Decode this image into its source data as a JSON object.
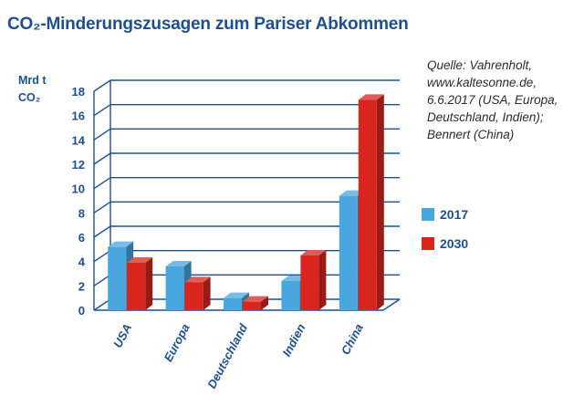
{
  "title": "CO₂-Minderungszusagen zum Pariser Abkommen",
  "source_note": "Quelle: Vahrenholt, www.kaltesonne.de, 6.6.2017 (USA, Europa, Deutschland, Indien); Bennert (China)",
  "colors": {
    "series_2017": "#4aa6de",
    "series_2030": "#d8261f",
    "text": "#1d4f91",
    "grid": "#1d4f91"
  },
  "chart_data": {
    "type": "bar",
    "categories": [
      "USA",
      "Europa",
      "Deutschland",
      "Indien",
      "China"
    ],
    "series": [
      {
        "name": "2017",
        "values": [
          5.2,
          3.6,
          1.0,
          2.4,
          9.4
        ]
      },
      {
        "name": "2030",
        "values": [
          3.9,
          2.3,
          0.7,
          4.5,
          17.3
        ]
      }
    ],
    "ylabel": [
      "Mrd t",
      "CO₂"
    ],
    "yticks": [
      0,
      2,
      4,
      6,
      8,
      10,
      12,
      14,
      16,
      18
    ],
    "ylim": [
      0,
      18
    ],
    "grid": true,
    "legend_position": "right",
    "style": "3d-bar"
  }
}
